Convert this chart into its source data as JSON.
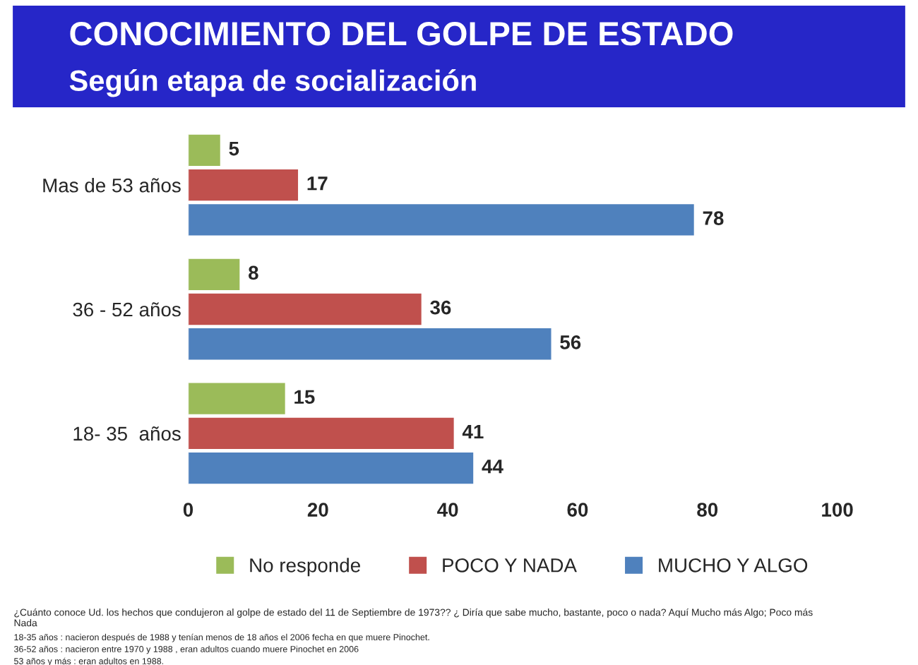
{
  "chart_data": {
    "type": "bar",
    "orientation": "horizontal",
    "title": "CONOCIMIENTO DEL GOLPE DE ESTADO",
    "subtitle": "Según etapa de socialización",
    "categories": [
      "Mas de 53 años",
      "36 - 52 años",
      "18- 35  años"
    ],
    "series": [
      {
        "name": "No responde",
        "color": "#9bbb59",
        "values": [
          5,
          8,
          15
        ]
      },
      {
        "name": "POCO Y NADA",
        "color": "#c0504d",
        "values": [
          17,
          36,
          41
        ]
      },
      {
        "name": "MUCHO Y ALGO",
        "color": "#4f81bd",
        "values": [
          78,
          56,
          44
        ]
      }
    ],
    "xlim": [
      0,
      100
    ],
    "xticks": [
      0,
      20,
      40,
      60,
      80,
      100
    ],
    "grid": false,
    "legend": "bottom",
    "data_labels": true,
    "annotations": [
      "¿Cuánto conoce Ud. los hechos que condujeron al golpe de estado del 11 de Septiembre de 1973?? ¿ Diría que sabe mucho, bastante, poco o nada? Aquí Mucho más Algo; Poco más Nada",
      "18-35 años : nacieron después de 1988 y tenían menos de 18 años el 2006 fecha en que muere Pinochet.",
      "36-52 años : nacieron entre 1970 y 1988 , eran adultos cuando muere Pinochet en 2006",
      "53 años y más : eran adultos en 1988."
    ]
  }
}
